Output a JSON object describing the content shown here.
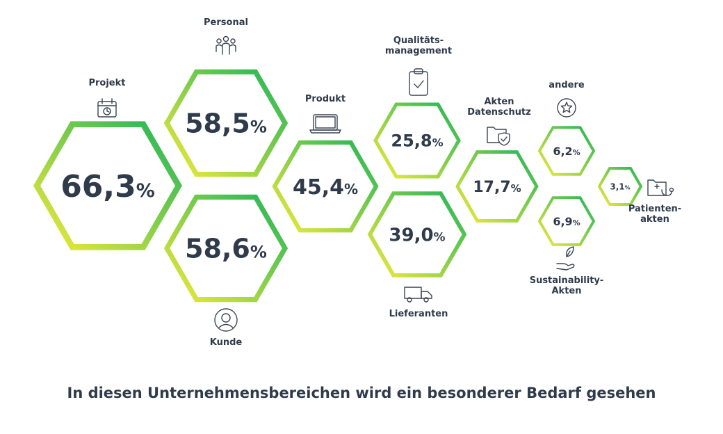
{
  "chart_data": {
    "type": "hexagon-bubble",
    "title": "",
    "unit": "%",
    "categories": [
      "Projekt",
      "Personal",
      "Kunde",
      "Produkt",
      "Qualitäts-\nmanagement",
      "Lieferanten",
      "Akten\nDatenschutz",
      "andere",
      "Sustainability-\nAkten",
      "Patienten-\nakten"
    ],
    "values": [
      66.3,
      58.5,
      58.6,
      45.4,
      25.8,
      39.0,
      17.7,
      6.2,
      6.9,
      3.1
    ],
    "value_labels": [
      "66,3",
      "58,5",
      "58,6",
      "45,4",
      "25,8",
      "39,0",
      "17,7",
      "6,2",
      "6,9",
      "3,1"
    ],
    "icons": [
      "calendar-icon",
      "people-group-icon",
      "user-avatar-icon",
      "laptop-icon",
      "clipboard-check-icon",
      "truck-icon",
      "shield-folder-icon",
      "star-icon",
      "hand-leaf-icon",
      "medical-folder-icon"
    ],
    "gradient": {
      "from": "#f2ea3a",
      "to": "#1db45a"
    },
    "text_color": "#2f3a4a"
  },
  "caption": "In diesen Unternehmensbereichen wird ein besonderer Bedarf gesehen"
}
